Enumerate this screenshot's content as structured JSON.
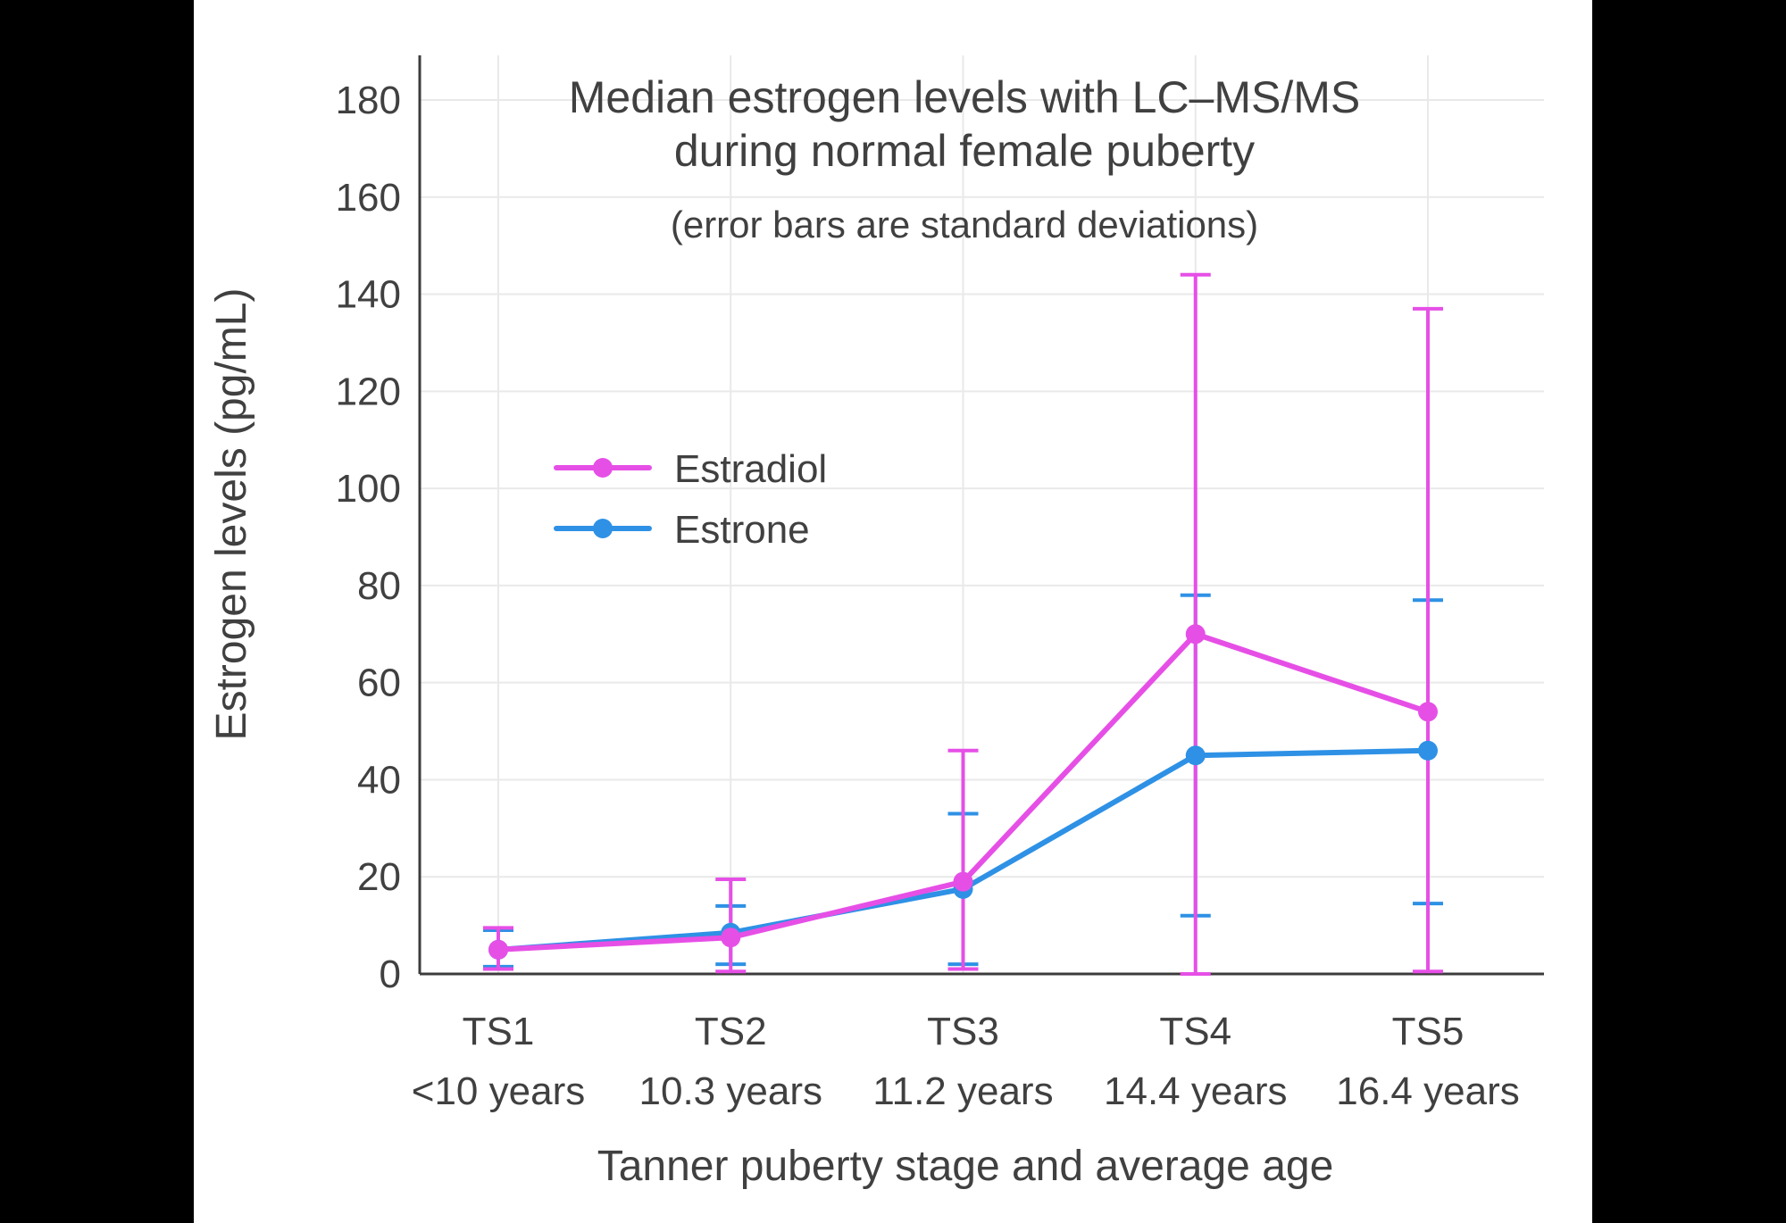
{
  "page": {
    "background": "#000000",
    "panel_background": "#ffffff"
  },
  "chart_data": {
    "type": "line",
    "title": "Median estrogen levels with LC–MS/MS",
    "title_line2": "during normal female puberty",
    "subtitle": "(error bars are standard deviations)",
    "xlabel": "Tanner puberty stage and average age",
    "ylabel": "Estrogen levels (pg/mL)",
    "categories": [
      "TS1",
      "TS2",
      "TS3",
      "TS4",
      "TS5"
    ],
    "category_ages": [
      "<10 years",
      "10.3 years",
      "11.2 years",
      "14.4 years",
      "16.4 years"
    ],
    "yticks": [
      0,
      20,
      40,
      60,
      80,
      100,
      120,
      140,
      160,
      180
    ],
    "ylim": [
      0,
      189
    ],
    "grid": true,
    "legend_position": "inside-upper-left",
    "text_color": "#404040",
    "grid_color": "#e9e9e9",
    "axis_color": "#3c3c3c",
    "series": [
      {
        "name": "Estradiol",
        "color": "#E64FE6",
        "values": [
          5,
          7.5,
          19,
          70,
          54
        ],
        "err_lo": [
          1,
          0.5,
          1,
          0,
          0.5
        ],
        "err_hi": [
          9.5,
          19.5,
          46,
          144,
          137
        ]
      },
      {
        "name": "Estrone",
        "color": "#2E91E5",
        "values": [
          5,
          8.5,
          17.5,
          45,
          46
        ],
        "err_lo": [
          1.5,
          2,
          2,
          12,
          14.5
        ],
        "err_hi": [
          9,
          14,
          33,
          78,
          77
        ]
      }
    ]
  }
}
